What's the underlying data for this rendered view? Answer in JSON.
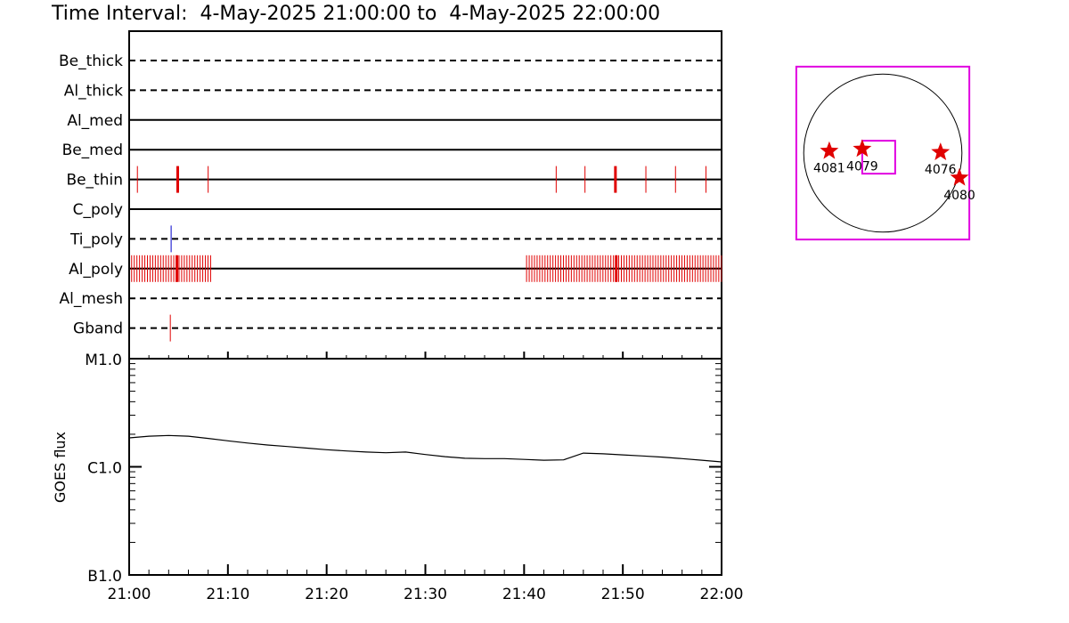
{
  "header": {
    "title": "Time Interval:  4-May-2025 21:00:00 to  4-May-2025 22:00:00"
  },
  "colors": {
    "event_red": "#e00000",
    "event_blue": "#0000cc",
    "fov_magenta": "#e000e0",
    "axis": "#000000"
  },
  "chart_data": [
    {
      "type": "timeline",
      "title": "",
      "x_range": [
        "21:00",
        "22:00"
      ],
      "rows": [
        {
          "label": "Be_thick",
          "style": "dashed",
          "events": []
        },
        {
          "label": "Al_thick",
          "style": "dashed",
          "events": []
        },
        {
          "label": "Al_med",
          "style": "solid",
          "events": []
        },
        {
          "label": "Be_med",
          "style": "solid",
          "events": []
        },
        {
          "label": "Be_thin",
          "style": "solid",
          "events": [
            {
              "t": "21:00:50",
              "w": 1,
              "color": "red"
            },
            {
              "t": "21:04:55",
              "w": 3,
              "color": "red"
            },
            {
              "t": "21:08:00",
              "w": 1,
              "color": "red"
            },
            {
              "t": "21:43:15",
              "w": 1,
              "color": "red"
            },
            {
              "t": "21:46:10",
              "w": 1,
              "color": "red"
            },
            {
              "t": "21:49:15",
              "w": 3,
              "color": "red"
            },
            {
              "t": "21:52:20",
              "w": 1,
              "color": "red"
            },
            {
              "t": "21:55:20",
              "w": 1,
              "color": "red"
            },
            {
              "t": "21:58:25",
              "w": 1,
              "color": "red"
            }
          ]
        },
        {
          "label": "C_poly",
          "style": "solid",
          "events": []
        },
        {
          "label": "Ti_poly",
          "style": "dashed",
          "events": [
            {
              "t": "21:04:15",
              "w": 1,
              "color": "blue"
            }
          ]
        },
        {
          "label": "Al_poly",
          "style": "solid",
          "event_windows": [
            {
              "start": "21:00:15",
              "end": "21:08:20",
              "step_s": 16,
              "color": "red"
            },
            {
              "start": "21:40:15",
              "end": "22:00:00",
              "step_s": 16,
              "color": "red"
            }
          ],
          "events": [
            {
              "t": "21:04:50",
              "w": 3,
              "color": "red"
            },
            {
              "t": "21:49:20",
              "w": 3,
              "color": "red"
            }
          ]
        },
        {
          "label": "Al_mesh",
          "style": "dashed",
          "events": []
        },
        {
          "label": "Gband",
          "style": "dashed",
          "events": [
            {
              "t": "21:04:10",
              "w": 1,
              "color": "red"
            }
          ]
        }
      ]
    },
    {
      "type": "line",
      "title": "",
      "ylabel": "GOES flux",
      "xlabel": "",
      "y_scale": "log",
      "ylim": [
        1e-07,
        1e-05
      ],
      "y_ticks": [
        {
          "value": 1e-05,
          "label": "M1.0"
        },
        {
          "value": 1e-06,
          "label": "C1.0"
        },
        {
          "value": 1e-07,
          "label": "B1.0"
        }
      ],
      "x_ticks": [
        "21:00",
        "21:10",
        "21:20",
        "21:30",
        "21:40",
        "21:50",
        "22:00"
      ],
      "series": [
        {
          "x": [
            "21:00",
            "21:02",
            "21:04",
            "21:06",
            "21:08",
            "21:10",
            "21:12",
            "21:14",
            "21:16",
            "21:18",
            "21:20",
            "21:22",
            "21:24",
            "21:26",
            "21:28",
            "21:30",
            "21:32",
            "21:34",
            "21:36",
            "21:38",
            "21:40",
            "21:42",
            "21:44",
            "21:46",
            "21:48",
            "21:50",
            "21:52",
            "21:54",
            "21:56",
            "21:58",
            "22:00"
          ],
          "y": [
            1.85e-06,
            1.92e-06,
            1.95e-06,
            1.92e-06,
            1.83e-06,
            1.74e-06,
            1.66e-06,
            1.59e-06,
            1.54e-06,
            1.49e-06,
            1.44e-06,
            1.4e-06,
            1.37e-06,
            1.35e-06,
            1.37e-06,
            1.3e-06,
            1.24e-06,
            1.2e-06,
            1.19e-06,
            1.19e-06,
            1.17e-06,
            1.15e-06,
            1.16e-06,
            1.34e-06,
            1.32e-06,
            1.29e-06,
            1.26e-06,
            1.23e-06,
            1.19e-06,
            1.15e-06,
            1.11e-06
          ]
        }
      ]
    },
    {
      "type": "scatter",
      "title": "",
      "x_range": [
        -1200,
        1200
      ],
      "y_range": [
        -1200,
        1200
      ],
      "disk_radius_arcsec": 960,
      "outer_fov": {
        "x_range": [
          -1050,
          1050
        ],
        "y_range": [
          -1050,
          1050
        ]
      },
      "inner_fov": {
        "x_range": [
          -250,
          150
        ],
        "y_range": [
          -250,
          150
        ]
      },
      "active_regions": [
        {
          "label": "4081",
          "x": -650,
          "y": 25
        },
        {
          "label": "4079",
          "x": -250,
          "y": 50
        },
        {
          "label": "4076",
          "x": 700,
          "y": 10
        },
        {
          "label": "4080",
          "x": 930,
          "y": -300
        }
      ]
    }
  ]
}
